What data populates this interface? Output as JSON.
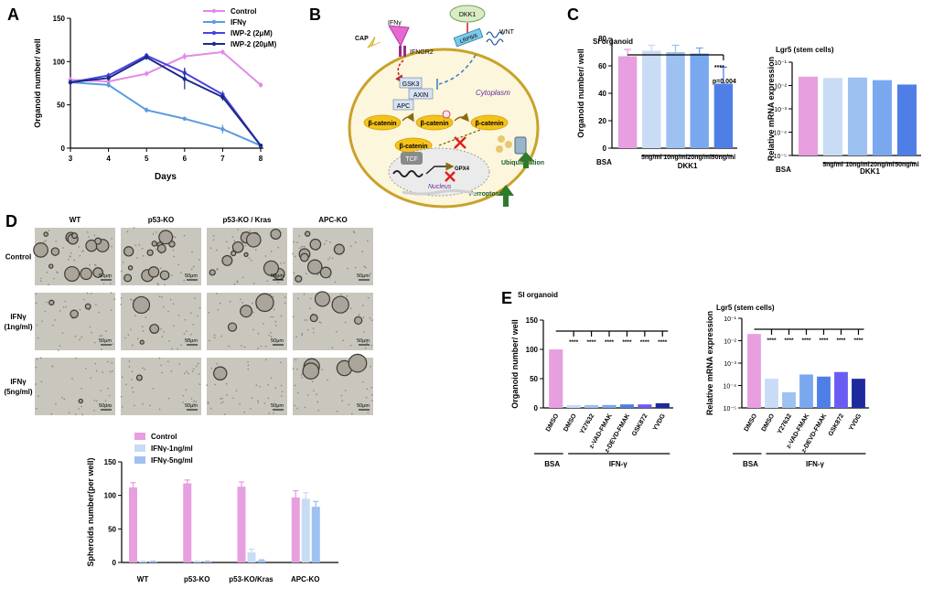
{
  "panels": {
    "A": {
      "letter": "A"
    },
    "B": {
      "letter": "B"
    },
    "C": {
      "letter": "C"
    },
    "D": {
      "letter": "D"
    },
    "E": {
      "letter": "E"
    }
  },
  "colors": {
    "pink": "#e89fe0",
    "lightblue": "#c8dcf5",
    "midblue": "#9dc1f0",
    "blue": "#79a8ef",
    "royal": "#4f7fe6",
    "violet": "#6a5cf2",
    "navy": "#1c2a9c",
    "line_ctrl": "#e389e8",
    "line_ifn": "#5b9be0",
    "line_iwp2": "#4a43e0",
    "line_iwp20": "#1b2a8a"
  },
  "diagram": {
    "labels": {
      "ifn": "IFNγ",
      "cap": "CAP",
      "ifngr2": "IFNGR2",
      "dkk1": "DKK1",
      "lrp56": "LRP5/6",
      "wnt": "WNT",
      "gsk3": "GSK3",
      "axin": "AXIN",
      "apc": "APC",
      "cytoplasm": "Cytoplasm",
      "bcat1": "β-catenin",
      "bcat2": "β-catenin",
      "bcat3": "β-catenin",
      "bcat4": "β-catenin",
      "tcf": "TCF",
      "gpx4": "GPX4",
      "nucleus": "Nucleus",
      "ubiq": "Ubiquitination",
      "ferro": "Ferroptosis"
    }
  },
  "micro": {
    "col_headers": [
      "WT",
      "p53-KO",
      "p53-KO / Kras",
      "APC-KO"
    ],
    "row_headers": [
      [
        "Control"
      ],
      [
        "IFNγ",
        "(1ng/ml)"
      ],
      [
        "IFNγ",
        "(5ng/ml)"
      ]
    ],
    "scale": "50μm"
  },
  "chart_data": [
    {
      "panel": "A",
      "type": "line",
      "xlabel": "Days",
      "ylabel": "Organoid number/ well",
      "x": [
        3,
        4,
        5,
        6,
        7,
        8
      ],
      "xlim": [
        3,
        8
      ],
      "ylim": [
        0,
        150
      ],
      "yticks": [
        0,
        50,
        100,
        150
      ],
      "series": [
        {
          "name": "Control",
          "values": [
            79,
            77,
            86,
            106,
            111,
            73
          ]
        },
        {
          "name": "IFNγ",
          "values": [
            76,
            73,
            44,
            34,
            22,
            3
          ]
        },
        {
          "name": "IWP-2 (2μM)",
          "values": [
            76,
            84,
            107,
            87,
            62,
            3
          ]
        },
        {
          "name": "IWP-2 (20μM)",
          "values": [
            76,
            81,
            105,
            80,
            59,
            3
          ]
        }
      ],
      "legend": "top-right"
    },
    {
      "panel": "C-left",
      "type": "bar",
      "title": "SI organoid",
      "ylabel": "Organoid number/ well",
      "categories": [
        "BSA",
        "5ng/ml",
        "10ng/ml",
        "20ng/ml",
        "50ng/ml"
      ],
      "group_label": "DKK1",
      "values": [
        67,
        71,
        70,
        69,
        47
      ],
      "errors": [
        5,
        4,
        5,
        4,
        12
      ],
      "ylim": [
        0,
        80
      ],
      "yticks": [
        0,
        20,
        40,
        60,
        80
      ],
      "annotations": [
        "****",
        "p=0.004"
      ]
    },
    {
      "panel": "C-right",
      "type": "bar",
      "title": "Lgr5 (stem cells)",
      "ylabel": "Relative mRNA expression",
      "categories": [
        "BSA",
        "5ng/ml",
        "10ng/ml",
        "20ng/ml",
        "50ng/ml"
      ],
      "group_label": "DKK1",
      "values": [
        0.024,
        0.021,
        0.022,
        0.017,
        0.011
      ],
      "scale": "log",
      "ylim": [
        1e-05,
        0.1
      ],
      "ytick_labels": [
        "10⁻⁵",
        "10⁻⁴",
        "10⁻³",
        "10⁻²",
        "10⁻¹"
      ]
    },
    {
      "panel": "D",
      "type": "bar",
      "ylabel": "Spheroids number(per well)",
      "categories": [
        "WT",
        "p53-KO",
        "p53-KO/Kras",
        "APC-KO"
      ],
      "series": [
        {
          "name": "Control",
          "values": [
            112,
            118,
            113,
            97
          ]
        },
        {
          "name": "IFNγ-1ng/ml",
          "values": [
            1,
            1,
            15,
            95
          ]
        },
        {
          "name": "IFNγ-5ng/ml",
          "values": [
            1,
            1,
            3,
            83
          ]
        }
      ],
      "errors": [
        [
          7,
          5,
          7,
          10
        ],
        [
          1,
          1,
          5,
          9
        ],
        [
          1,
          1,
          1,
          8
        ]
      ],
      "ylim": [
        0,
        150
      ],
      "yticks": [
        0,
        50,
        100,
        150
      ],
      "legend": "top-left"
    },
    {
      "panel": "E-left",
      "type": "bar",
      "title": "SI organoid",
      "ylabel": "Organoid number/ well",
      "categories": [
        "DMSO",
        "DMSO",
        "Y27632",
        "z-VAD-FMAK",
        "z-DEVD-FMAK",
        "GSK872",
        "YVDG"
      ],
      "group_labels": [
        "BSA",
        "IFN-γ"
      ],
      "values": [
        100,
        5,
        5,
        5,
        6,
        6,
        8
      ],
      "ylim": [
        0,
        150
      ],
      "yticks": [
        0,
        50,
        100,
        150
      ],
      "annotations": [
        "****",
        "****",
        "****",
        "****",
        "****",
        "****"
      ]
    },
    {
      "panel": "E-right",
      "type": "bar",
      "title": "Lgr5 (stem cells)",
      "ylabel": "Relative mRNA expression",
      "categories": [
        "DMSO",
        "DMSO",
        "Y27632",
        "z-VAD-FMAK",
        "z-DEVD-FMAK",
        "GSK872",
        "YVDG"
      ],
      "group_labels": [
        "BSA",
        "IFN-γ"
      ],
      "values": [
        0.02,
        0.0002,
        5e-05,
        0.00031,
        0.00025,
        0.0004,
        0.0002
      ],
      "scale": "log",
      "ylim": [
        1e-05,
        0.1
      ],
      "ytick_labels": [
        "10⁻⁵",
        "10⁻⁴",
        "10⁻³",
        "10⁻²",
        "10⁻¹"
      ],
      "annotations": [
        "****",
        "****",
        "****",
        "****",
        "****",
        "****"
      ]
    }
  ]
}
